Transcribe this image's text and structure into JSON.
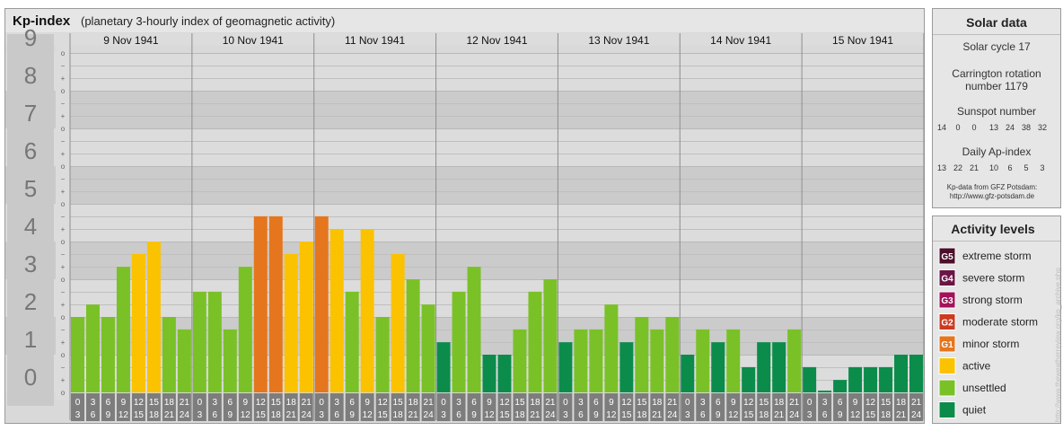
{
  "header": {
    "title": "Kp-index",
    "subtitle": "(planetary 3-hourly index of geomagnetic activity)"
  },
  "chart_data": {
    "type": "bar",
    "ylim": [
      0,
      9
    ],
    "y_ticks": [
      "0",
      "1",
      "2",
      "3",
      "4",
      "5",
      "6",
      "7",
      "8",
      "9"
    ],
    "sub_ticks": [
      "o",
      "+",
      "−"
    ],
    "days": [
      "9 Nov 1941",
      "10 Nov 1941",
      "11 Nov 1941",
      "12 Nov 1941",
      "13 Nov 1941",
      "14 Nov 1941",
      "15 Nov 1941"
    ],
    "hour_start": [
      "0",
      "3",
      "6",
      "9",
      "12",
      "15",
      "18",
      "21"
    ],
    "hour_end": [
      "3",
      "6",
      "9",
      "12",
      "15",
      "18",
      "21",
      "24"
    ],
    "values": [
      [
        2.0,
        2.33,
        2.0,
        3.33,
        3.67,
        4.0,
        2.0,
        1.67
      ],
      [
        2.67,
        2.67,
        1.67,
        3.33,
        4.67,
        4.67,
        3.67,
        4.0
      ],
      [
        4.67,
        4.33,
        2.67,
        4.33,
        2.0,
        3.67,
        3.0,
        2.33
      ],
      [
        1.33,
        2.67,
        3.33,
        1.0,
        1.0,
        1.67,
        2.67,
        3.0
      ],
      [
        1.33,
        1.67,
        1.67,
        2.33,
        1.33,
        2.0,
        1.67,
        2.0
      ],
      [
        1.0,
        1.67,
        1.33,
        1.67,
        0.67,
        1.33,
        1.33,
        1.67
      ],
      [
        0.67,
        0.0,
        0.33,
        0.67,
        0.67,
        0.67,
        1.0,
        1.0
      ]
    ]
  },
  "solar": {
    "title": "Solar data",
    "cycle": "Solar cycle 17",
    "carrington_line1": "Carrington rotation",
    "carrington_line2": "number 1179",
    "sunspot_label": "Sunspot number",
    "sunspot_values": [
      "14",
      "0",
      "0",
      "13",
      "24",
      "38",
      "32"
    ],
    "ap_label": "Daily Ap-index",
    "ap_values": [
      "13",
      "22",
      "21",
      "10",
      "6",
      "5",
      "3"
    ],
    "source_line1": "Kp-data from GFZ Potsdam:",
    "source_line2": "http://www.gfz-potsdam.de"
  },
  "activity": {
    "title": "Activity levels",
    "levels": [
      {
        "badge": "G5",
        "label": "extreme storm",
        "color": "#4d0f2b"
      },
      {
        "badge": "G4",
        "label": "severe storm",
        "color": "#6b1546"
      },
      {
        "badge": "G3",
        "label": "strong storm",
        "color": "#a3125b"
      },
      {
        "badge": "G2",
        "label": "moderate storm",
        "color": "#cc3a20"
      },
      {
        "badge": "G1",
        "label": "minor storm",
        "color": "#e5761e"
      },
      {
        "badge": "",
        "label": "active",
        "color": "#fbc200"
      },
      {
        "badge": "",
        "label": "unsettled",
        "color": "#7ac127"
      },
      {
        "badge": "",
        "label": "quiet",
        "color": "#0b8c4b"
      }
    ]
  },
  "watermark": "http://www.theweatherreview.org/kp_archive.php"
}
